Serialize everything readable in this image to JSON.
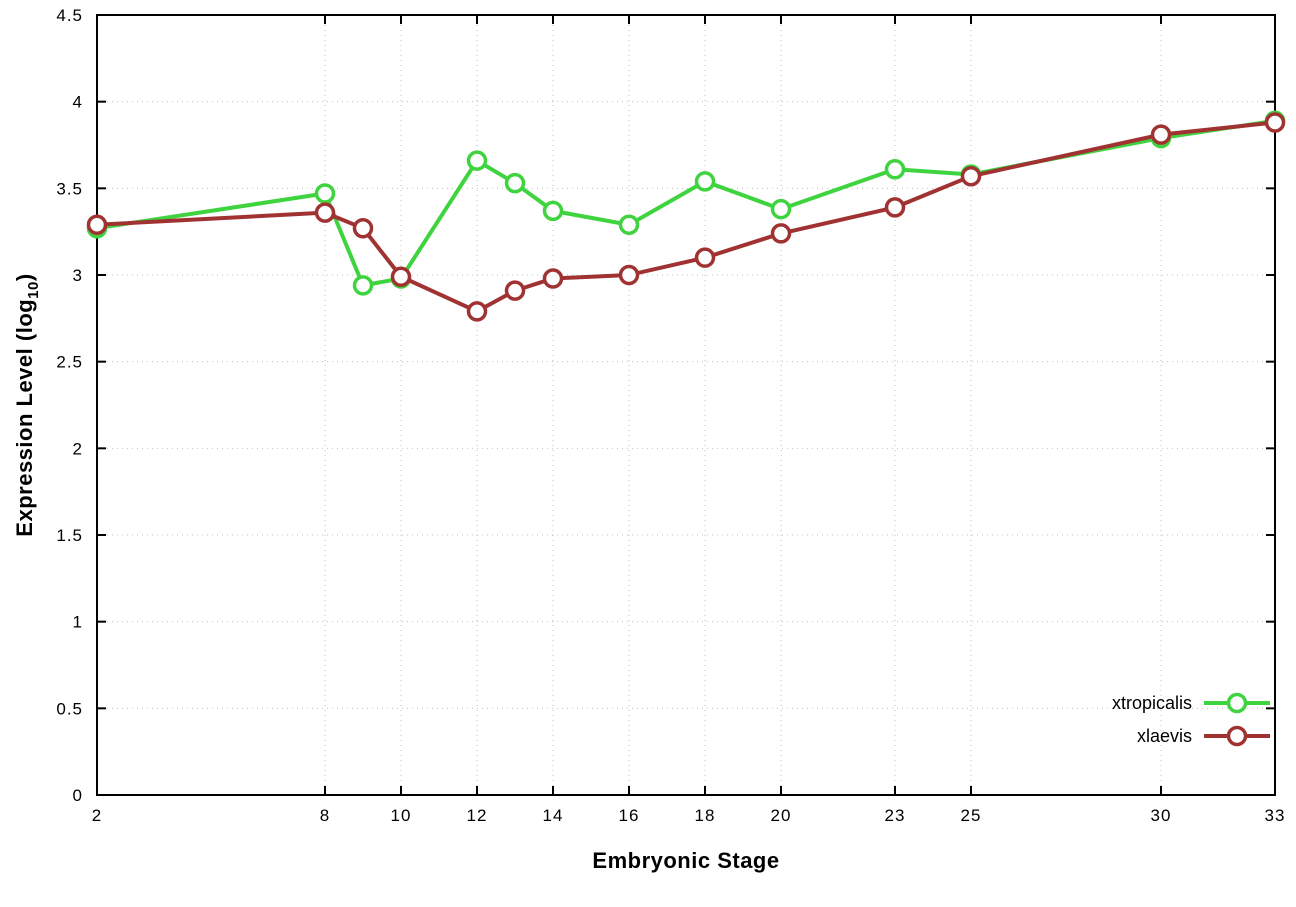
{
  "chart_data": {
    "type": "line",
    "title": "",
    "xlabel": "Embryonic Stage",
    "ylabel": {
      "prefix": "Expression Level (log",
      "subscript": "10",
      "suffix": ")"
    },
    "x_range": [
      2,
      33
    ],
    "y_range": [
      0,
      4.5
    ],
    "x_ticks": [
      2,
      8,
      10,
      12,
      14,
      16,
      18,
      20,
      23,
      25,
      30,
      33
    ],
    "y_ticks": [
      0,
      0.5,
      1,
      1.5,
      2,
      2.5,
      3,
      3.5,
      4,
      4.5
    ],
    "grid": true,
    "legend_position": "bottom-right",
    "background_color": "#ffffff",
    "border_color": "#000000",
    "grid_color": "#c0c0c0",
    "x": [
      2,
      8,
      9,
      10,
      12,
      13,
      14,
      16,
      18,
      20,
      23,
      25,
      30,
      33
    ],
    "series": [
      {
        "name": "xtropicalis",
        "color": "#3fd43f",
        "values": [
          3.27,
          3.47,
          2.94,
          2.98,
          3.66,
          3.53,
          3.37,
          3.29,
          3.54,
          3.38,
          3.61,
          3.58,
          3.79,
          3.89
        ]
      },
      {
        "name": "xlaevis",
        "color": "#a03232",
        "values": [
          3.29,
          3.36,
          3.27,
          2.99,
          2.79,
          2.91,
          2.98,
          3.0,
          3.1,
          3.24,
          3.39,
          3.57,
          3.81,
          3.88
        ]
      }
    ]
  }
}
